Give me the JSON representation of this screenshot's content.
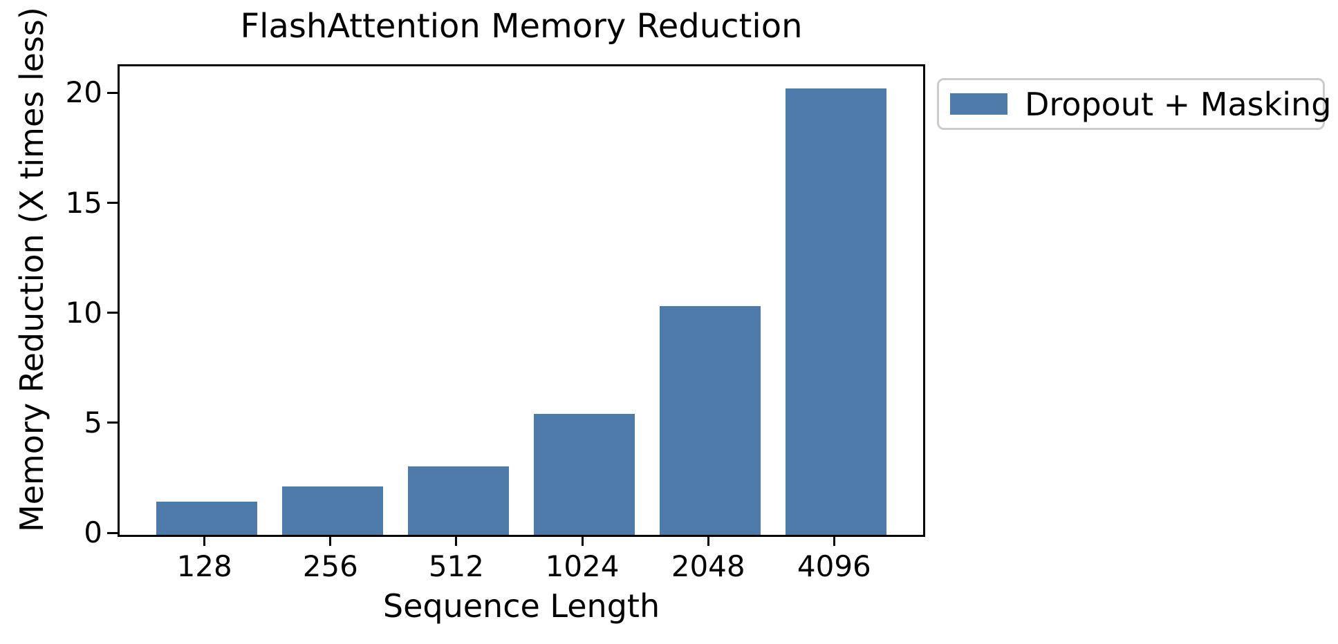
{
  "chart_data": {
    "type": "bar",
    "title": "FlashAttention Memory Reduction",
    "xlabel": "Sequence Length",
    "ylabel": "Memory Reduction (X times less)",
    "categories": [
      "128",
      "256",
      "512",
      "1024",
      "2048",
      "4096"
    ],
    "series": [
      {
        "name": "Dropout + Masking",
        "values": [
          1.5,
          2.2,
          3.1,
          5.5,
          10.4,
          20.3
        ]
      }
    ],
    "yticks": [
      0,
      5,
      10,
      15,
      20
    ],
    "ylim": [
      0,
      21.3
    ],
    "grid": false,
    "legend_position": "outside-upper-right",
    "bar_color": "#4d7aa8"
  },
  "colors": {
    "bar": "#4d7aa8",
    "text": "#000000",
    "spine": "#000000",
    "legend_border": "#cccccc",
    "background": "#ffffff"
  }
}
